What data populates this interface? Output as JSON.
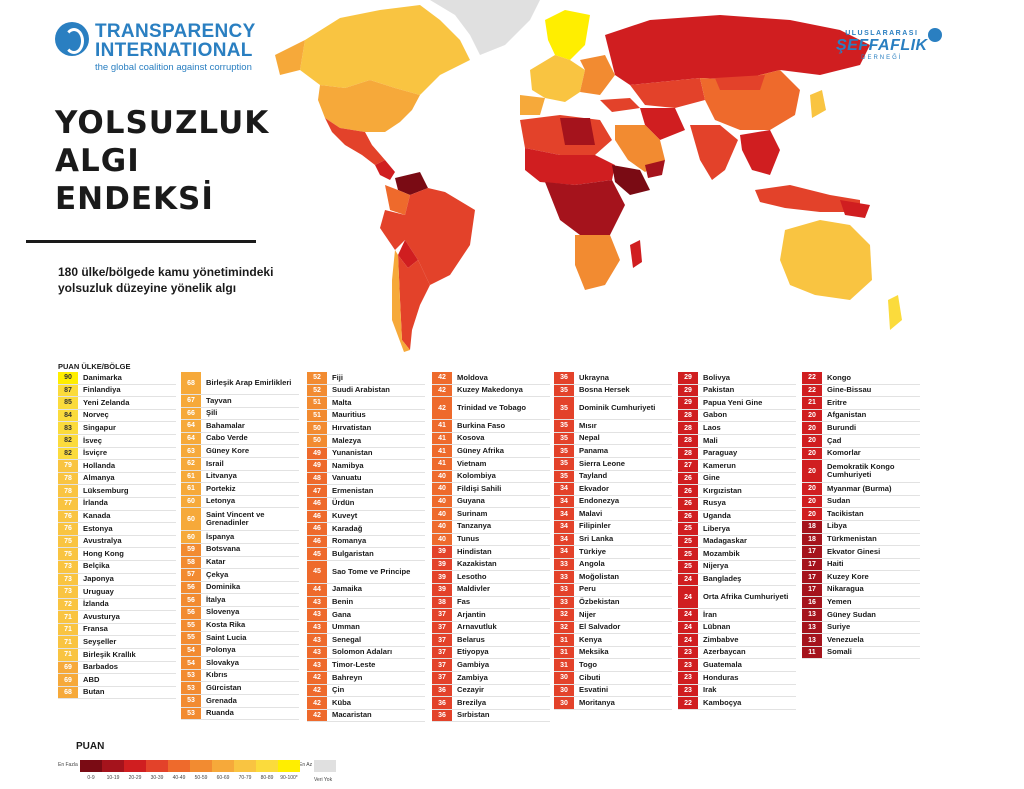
{
  "header": {
    "ti_logo": {
      "line1": "TRANSPARENCY",
      "line2": "INTERNATIONAL",
      "tagline": "the global coalition against corruption",
      "icon": "globe-icon"
    },
    "partner_logo": {
      "line1": "ULUSLARARASI",
      "line2": "ŞEFFAFLIK",
      "line3": "DERNEĞİ",
      "icon": "globe-icon"
    },
    "title_lines": [
      "YOLSUZLUK",
      "ALGI",
      "ENDEKSİ"
    ],
    "subtitle_lines": [
      "180 ülke/bölgede kamu yönetimindeki",
      "yolsuzluk düzeyine yönelik algı"
    ],
    "col_head": "PUAN ÜLKE/BÖLGE"
  },
  "colors": {
    "0-9": "#7a0b14",
    "10-19": "#a5131c",
    "20-29": "#d01e20",
    "30-39": "#e3422a",
    "40-49": "#ee6a2c",
    "50-59": "#f28b31",
    "60-69": "#f6a93a",
    "70-79": "#f9c441",
    "80-89": "#fbdb3c",
    "90-100": "#ffee00",
    "no_data": "#e0e0e0"
  },
  "columns": [
    [
      [
        "90",
        "Danimarka"
      ],
      [
        "87",
        "Finlandiya"
      ],
      [
        "85",
        "Yeni Zelanda"
      ],
      [
        "84",
        "Norveç"
      ],
      [
        "83",
        "Singapur"
      ],
      [
        "82",
        "İsveç"
      ],
      [
        "82",
        "İsviçre"
      ],
      [
        "79",
        "Hollanda"
      ],
      [
        "78",
        "Almanya"
      ],
      [
        "78",
        "Lüksemburg"
      ],
      [
        "77",
        "İrlanda"
      ],
      [
        "76",
        "Kanada"
      ],
      [
        "76",
        "Estonya"
      ],
      [
        "75",
        "Avustralya"
      ],
      [
        "75",
        "Hong Kong"
      ],
      [
        "73",
        "Belçika"
      ],
      [
        "73",
        "Japonya"
      ],
      [
        "73",
        "Uruguay"
      ],
      [
        "72",
        "İzlanda"
      ],
      [
        "71",
        "Avusturya"
      ],
      [
        "71",
        "Fransa"
      ],
      [
        "71",
        "Seyşeller"
      ],
      [
        "71",
        "Birleşik Krallık"
      ],
      [
        "69",
        "Barbados"
      ],
      [
        "69",
        "ABD"
      ],
      [
        "68",
        "Butan"
      ]
    ],
    [
      [
        "68",
        "Birleşik Arap Emirlikleri"
      ],
      [
        "67",
        "Tayvan"
      ],
      [
        "66",
        "Şili"
      ],
      [
        "64",
        "Bahamalar"
      ],
      [
        "64",
        "Cabo Verde"
      ],
      [
        "63",
        "Güney Kore"
      ],
      [
        "62",
        "Israil"
      ],
      [
        "61",
        "Litvanya"
      ],
      [
        "61",
        "Portekiz"
      ],
      [
        "60",
        "Letonya"
      ],
      [
        "60",
        "Saint Vincent ve Grenadinler"
      ],
      [
        "60",
        "İspanya"
      ],
      [
        "59",
        "Botsvana"
      ],
      [
        "58",
        "Katar"
      ],
      [
        "57",
        "Çekya"
      ],
      [
        "56",
        "Dominika"
      ],
      [
        "56",
        "İtalya"
      ],
      [
        "56",
        "Slovenya"
      ],
      [
        "55",
        "Kosta Rika"
      ],
      [
        "55",
        "Saint Lucia"
      ],
      [
        "54",
        "Polonya"
      ],
      [
        "54",
        "Slovakya"
      ],
      [
        "53",
        "Kıbrıs"
      ],
      [
        "53",
        "Gürcistan"
      ],
      [
        "53",
        "Grenada"
      ],
      [
        "53",
        "Ruanda"
      ]
    ],
    [
      [
        "52",
        "Fiji"
      ],
      [
        "52",
        "Suudi Arabistan"
      ],
      [
        "51",
        "Malta"
      ],
      [
        "51",
        "Mauritius"
      ],
      [
        "50",
        "Hırvatistan"
      ],
      [
        "50",
        "Malezya"
      ],
      [
        "49",
        "Yunanistan"
      ],
      [
        "49",
        "Namibya"
      ],
      [
        "48",
        "Vanuatu"
      ],
      [
        "47",
        "Ermenistan"
      ],
      [
        "46",
        "Ürdün"
      ],
      [
        "46",
        "Kuveyt"
      ],
      [
        "46",
        "Karadağ"
      ],
      [
        "46",
        "Romanya"
      ],
      [
        "45",
        "Bulgaristan"
      ],
      [
        "45",
        "Sao Tome ve Principe"
      ],
      [
        "44",
        "Jamaika"
      ],
      [
        "43",
        "Benin"
      ],
      [
        "43",
        "Gana"
      ],
      [
        "43",
        "Umman"
      ],
      [
        "43",
        "Senegal"
      ],
      [
        "43",
        "Solomon Adaları"
      ],
      [
        "43",
        "Timor-Leste"
      ],
      [
        "42",
        "Bahreyn"
      ],
      [
        "42",
        "Çin"
      ],
      [
        "42",
        "Küba"
      ],
      [
        "42",
        "Macaristan"
      ]
    ],
    [
      [
        "42",
        "Moldova"
      ],
      [
        "42",
        "Kuzey Makedonya"
      ],
      [
        "42",
        "Trinidad ve Tobago"
      ],
      [
        "41",
        "Burkina Faso"
      ],
      [
        "41",
        "Kosova"
      ],
      [
        "41",
        "Güney Afrika"
      ],
      [
        "41",
        "Vietnam"
      ],
      [
        "40",
        "Kolombiya"
      ],
      [
        "40",
        "Fildişi Sahili"
      ],
      [
        "40",
        "Guyana"
      ],
      [
        "40",
        "Surinam"
      ],
      [
        "40",
        "Tanzanya"
      ],
      [
        "40",
        "Tunus"
      ],
      [
        "39",
        "Hindistan"
      ],
      [
        "39",
        "Kazakistan"
      ],
      [
        "39",
        "Lesotho"
      ],
      [
        "39",
        "Maldivler"
      ],
      [
        "38",
        "Fas"
      ],
      [
        "37",
        "Arjantin"
      ],
      [
        "37",
        "Arnavutluk"
      ],
      [
        "37",
        "Belarus"
      ],
      [
        "37",
        "Etiyopya"
      ],
      [
        "37",
        "Gambiya"
      ],
      [
        "37",
        "Zambiya"
      ],
      [
        "36",
        "Cezayir"
      ],
      [
        "36",
        "Brezilya"
      ],
      [
        "36",
        "Sırbistan"
      ]
    ],
    [
      [
        "36",
        "Ukrayna"
      ],
      [
        "35",
        "Bosna Hersek"
      ],
      [
        "35",
        "Dominik Cumhuriyeti"
      ],
      [
        "35",
        "Mısır"
      ],
      [
        "35",
        "Nepal"
      ],
      [
        "35",
        "Panama"
      ],
      [
        "35",
        "Sierra Leone"
      ],
      [
        "35",
        "Tayland"
      ],
      [
        "34",
        "Ekvador"
      ],
      [
        "34",
        "Endonezya"
      ],
      [
        "34",
        "Malavi"
      ],
      [
        "34",
        "Filipinler"
      ],
      [
        "34",
        "Sri Lanka"
      ],
      [
        "34",
        "Türkiye"
      ],
      [
        "33",
        "Angola"
      ],
      [
        "33",
        "Moğolistan"
      ],
      [
        "33",
        "Peru"
      ],
      [
        "33",
        "Özbekistan"
      ],
      [
        "32",
        "Nijer"
      ],
      [
        "32",
        "El Salvador"
      ],
      [
        "31",
        "Kenya"
      ],
      [
        "31",
        "Meksika"
      ],
      [
        "31",
        "Togo"
      ],
      [
        "30",
        "Cibuti"
      ],
      [
        "30",
        "Esvatini"
      ],
      [
        "30",
        "Moritanya"
      ]
    ],
    [
      [
        "29",
        "Bolivya"
      ],
      [
        "29",
        "Pakistan"
      ],
      [
        "29",
        "Papua Yeni Gine"
      ],
      [
        "28",
        "Gabon"
      ],
      [
        "28",
        "Laos"
      ],
      [
        "28",
        "Mali"
      ],
      [
        "28",
        "Paraguay"
      ],
      [
        "27",
        "Kamerun"
      ],
      [
        "26",
        "Gine"
      ],
      [
        "26",
        "Kırgızistan"
      ],
      [
        "26",
        "Rusya"
      ],
      [
        "26",
        "Uganda"
      ],
      [
        "25",
        "Liberya"
      ],
      [
        "25",
        "Madagaskar"
      ],
      [
        "25",
        "Mozambik"
      ],
      [
        "25",
        "Nijerya"
      ],
      [
        "24",
        "Bangladeş"
      ],
      [
        "24",
        "Orta Afrika Cumhuriyeti"
      ],
      [
        "24",
        "İran"
      ],
      [
        "24",
        "Lübnan"
      ],
      [
        "24",
        "Zimbabve"
      ],
      [
        "23",
        "Azerbaycan"
      ],
      [
        "23",
        "Guatemala"
      ],
      [
        "23",
        "Honduras"
      ],
      [
        "23",
        "Irak"
      ],
      [
        "22",
        "Kamboçya"
      ]
    ],
    [
      [
        "22",
        "Kongo"
      ],
      [
        "22",
        "Gine-Bissau"
      ],
      [
        "21",
        "Eritre"
      ],
      [
        "20",
        "Afganistan"
      ],
      [
        "20",
        "Burundi"
      ],
      [
        "20",
        "Çad"
      ],
      [
        "20",
        "Komorlar"
      ],
      [
        "20",
        "Demokratik Kongo Cumhuriyeti"
      ],
      [
        "20",
        "Myanmar (Burma)"
      ],
      [
        "20",
        "Sudan"
      ],
      [
        "20",
        "Tacikistan"
      ],
      [
        "18",
        "Libya"
      ],
      [
        "18",
        "Türkmenistan"
      ],
      [
        "17",
        "Ekvator Ginesi"
      ],
      [
        "17",
        "Haiti"
      ],
      [
        "17",
        "Kuzey Kore"
      ],
      [
        "17",
        "Nikaragua"
      ],
      [
        "16",
        "Yemen"
      ],
      [
        "13",
        "Güney Sudan"
      ],
      [
        "13",
        "Suriye"
      ],
      [
        "13",
        "Venezuela"
      ],
      [
        "11",
        "Somali"
      ]
    ]
  ],
  "legend": {
    "title": "PUAN",
    "low_end": "En Fazla",
    "high_end": "En Az",
    "bins": [
      "0-9",
      "10-19",
      "20-29",
      "30-39",
      "40-49",
      "50-59",
      "60-69",
      "70-79",
      "80-89",
      "90-100*"
    ],
    "no_data": "Veri Yok"
  }
}
